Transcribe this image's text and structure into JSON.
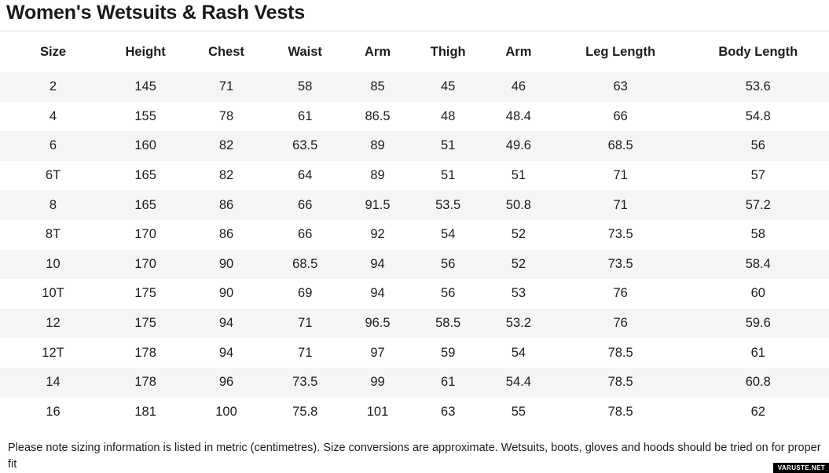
{
  "page": {
    "title": "Women's Wetsuits & Rash Vests",
    "footer_note": "Please note sizing information is listed in metric (centimetres). Size conversions are approximate. Wetsuits, boots, gloves and hoods should be tried on for proper fit",
    "watermark": "VARUSTE.NET"
  },
  "colors": {
    "text": "#1d1d1d",
    "row_stripe": "#f5f5f5",
    "divider": "#e0e0e0",
    "badge_bg": "#000000",
    "badge_text": "#ffffff"
  },
  "chart_data": {
    "type": "table",
    "title": "Women's Wetsuits & Rash Vests",
    "columns": [
      "Size",
      "Height",
      "Chest",
      "Waist",
      "Arm",
      "Thigh",
      "Arm",
      "Leg Length",
      "Body Length"
    ],
    "rows": [
      [
        "2",
        "145",
        "71",
        "58",
        "85",
        "45",
        "46",
        "63",
        "53.6"
      ],
      [
        "4",
        "155",
        "78",
        "61",
        "86.5",
        "48",
        "48.4",
        "66",
        "54.8"
      ],
      [
        "6",
        "160",
        "82",
        "63.5",
        "89",
        "51",
        "49.6",
        "68.5",
        "56"
      ],
      [
        "6T",
        "165",
        "82",
        "64",
        "89",
        "51",
        "51",
        "71",
        "57"
      ],
      [
        "8",
        "165",
        "86",
        "66",
        "91.5",
        "53.5",
        "50.8",
        "71",
        "57.2"
      ],
      [
        "8T",
        "170",
        "86",
        "66",
        "92",
        "54",
        "52",
        "73.5",
        "58"
      ],
      [
        "10",
        "170",
        "90",
        "68.5",
        "94",
        "56",
        "52",
        "73.5",
        "58.4"
      ],
      [
        "10T",
        "175",
        "90",
        "69",
        "94",
        "56",
        "53",
        "76",
        "60"
      ],
      [
        "12",
        "175",
        "94",
        "71",
        "96.5",
        "58.5",
        "53.2",
        "76",
        "59.6"
      ],
      [
        "12T",
        "178",
        "94",
        "71",
        "97",
        "59",
        "54",
        "78.5",
        "61"
      ],
      [
        "14",
        "178",
        "96",
        "73.5",
        "99",
        "61",
        "54.4",
        "78.5",
        "60.8"
      ],
      [
        "16",
        "181",
        "100",
        "75.8",
        "101",
        "63",
        "55",
        "78.5",
        "62"
      ]
    ]
  }
}
